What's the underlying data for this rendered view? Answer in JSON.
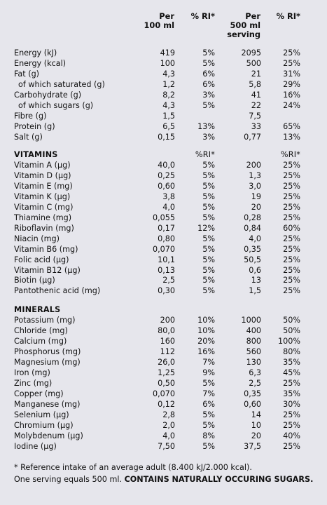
{
  "header": {
    "per100_line1": "Per",
    "per100_line2": "100 ml",
    "ri1": "% RI*",
    "perServ_line1": "Per",
    "perServ_line2": "500 ml",
    "perServ_line3": "serving",
    "ri2": "% RI*"
  },
  "nutrition": [
    {
      "label": "Energy (kJ)",
      "v1": "419",
      "r1": "5%",
      "v2": "2095",
      "r2": "25%"
    },
    {
      "label": "Energy (kcal)",
      "v1": "100",
      "r1": "5%",
      "v2": "500",
      "r2": "25%"
    },
    {
      "label": "Fat (g)",
      "v1": "4,3",
      "r1": "6%",
      "v2": "21",
      "r2": "31%"
    },
    {
      "label": "of which saturated (g)",
      "v1": "1,2",
      "r1": "6%",
      "v2": "5,8",
      "r2": "29%",
      "sub": true
    },
    {
      "label": "Carbohydrate  (g)",
      "v1": "8,2",
      "r1": "3%",
      "v2": "41",
      "r2": "16%"
    },
    {
      "label": "of which sugars (g)",
      "v1": "4,3",
      "r1": "5%",
      "v2": "22",
      "r2": "24%",
      "sub": true
    },
    {
      "label": "Fibre (g)",
      "v1": "1,5",
      "r1": "",
      "v2": "7,5",
      "r2": ""
    },
    {
      "label": "Protein (g)",
      "v1": "6,5",
      "r1": "13%",
      "v2": "33",
      "r2": "65%"
    },
    {
      "label": "Salt (g)",
      "v1": "0,15",
      "r1": "3%",
      "v2": "0,77",
      "r2": "13%"
    }
  ],
  "vitamins": {
    "title": "VITAMINS",
    "ri1": "%RI*",
    "ri2": "%RI*",
    "rows": [
      {
        "label": "Vitamin A (µg)",
        "v1": "40,0",
        "r1": "5%",
        "v2": "200",
        "r2": "25%"
      },
      {
        "label": "Vitamin D (µg)",
        "v1": "0,25",
        "r1": "5%",
        "v2": "1,3",
        "r2": "25%"
      },
      {
        "label": "Vitamin E (mg)",
        "v1": "0,60",
        "r1": "5%",
        "v2": "3,0",
        "r2": "25%"
      },
      {
        "label": "Vitamin K (µg)",
        "v1": "3,8",
        "r1": "5%",
        "v2": "19",
        "r2": "25%"
      },
      {
        "label": "Vitamin C (mg)",
        "v1": "4,0",
        "r1": "5%",
        "v2": "20",
        "r2": "25%"
      },
      {
        "label": "Thiamine (mg)",
        "v1": "0,055",
        "r1": "5%",
        "v2": "0,28",
        "r2": "25%"
      },
      {
        "label": "Riboflavin (mg)",
        "v1": "0,17",
        "r1": "12%",
        "v2": "0,84",
        "r2": "60%"
      },
      {
        "label": "Niacin (mg)",
        "v1": "0,80",
        "r1": "5%",
        "v2": "4,0",
        "r2": "25%"
      },
      {
        "label": "Vitamin B6 (mg)",
        "v1": "0,070",
        "r1": "5%",
        "v2": "0,35",
        "r2": "25%"
      },
      {
        "label": "Folic acid (µg)",
        "v1": "10,1",
        "r1": "5%",
        "v2": "50,5",
        "r2": "25%"
      },
      {
        "label": "Vitamin B12 (µg)",
        "v1": "0,13",
        "r1": "5%",
        "v2": "0,6",
        "r2": "25%"
      },
      {
        "label": "Biotin (µg)",
        "v1": "2,5",
        "r1": "5%",
        "v2": "13",
        "r2": "25%"
      },
      {
        "label": "Pantothenic acid (mg)",
        "v1": "0,30",
        "r1": "5%",
        "v2": "1,5",
        "r2": "25%"
      }
    ]
  },
  "minerals": {
    "title": "MINERALS",
    "rows": [
      {
        "label": "Potassium (mg)",
        "v1": "200",
        "r1": "10%",
        "v2": "1000",
        "r2": "50%"
      },
      {
        "label": "Chloride (mg)",
        "v1": "80,0",
        "r1": "10%",
        "v2": "400",
        "r2": "50%"
      },
      {
        "label": "Calcium (mg)",
        "v1": "160",
        "r1": "20%",
        "v2": "800",
        "r2": "100%"
      },
      {
        "label": "Phosphorus (mg)",
        "v1": "112",
        "r1": "16%",
        "v2": "560",
        "r2": "80%"
      },
      {
        "label": "Magnesium (mg)",
        "v1": "26,0",
        "r1": "7%",
        "v2": "130",
        "r2": "35%"
      },
      {
        "label": "Iron (mg)",
        "v1": "1,25",
        "r1": "9%",
        "v2": "6,3",
        "r2": "45%"
      },
      {
        "label": "Zinc (mg)",
        "v1": "0,50",
        "r1": "5%",
        "v2": "2,5",
        "r2": "25%"
      },
      {
        "label": "Copper (mg)",
        "v1": "0,070",
        "r1": "7%",
        "v2": "0,35",
        "r2": "35%"
      },
      {
        "label": "Manganese (mg)",
        "v1": "0,12",
        "r1": "6%",
        "v2": "0,60",
        "r2": "30%"
      },
      {
        "label": "Selenium (µg)",
        "v1": "2,8",
        "r1": "5%",
        "v2": "14",
        "r2": "25%"
      },
      {
        "label": "Chromium (µg)",
        "v1": "2,0",
        "r1": "5%",
        "v2": "10",
        "r2": "25%"
      },
      {
        "label": "Molybdenum (µg)",
        "v1": "4,0",
        "r1": "8%",
        "v2": "20",
        "r2": "40%"
      },
      {
        "label": "Iodine (µg)",
        "v1": "7,50",
        "r1": "5%",
        "v2": "37,5",
        "r2": "25%"
      }
    ]
  },
  "footer": {
    "line1": "* Reference intake of an average adult (8.400 kJ/2.000 kcal).",
    "line2_normal": "One serving equals 500 ml. ",
    "line2_bold": "CONTAINS NATURALLY OCCURING SUGARS."
  }
}
